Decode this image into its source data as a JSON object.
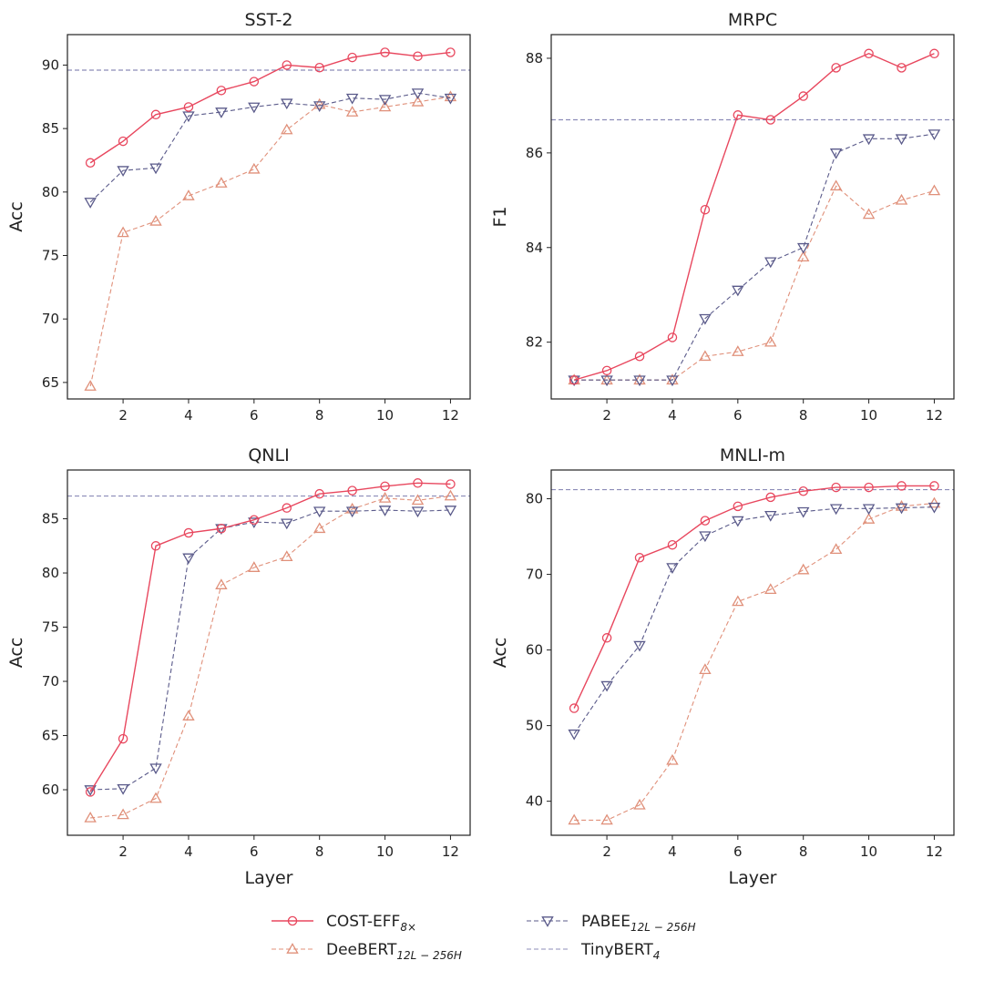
{
  "figure": {
    "xlabel": "Layer",
    "legend": [
      {
        "series": "COST-EFF",
        "label": "COST-EFF",
        "subscript": "8×",
        "color": "#e8475e",
        "marker": "circle",
        "dash": "solid"
      },
      {
        "series": "PABEE",
        "label": "PABEE",
        "subscript": "12L − 256H",
        "color": "#5a5a8a",
        "marker": "triangle-down",
        "dash": "dashed"
      },
      {
        "series": "DeeBERT",
        "label": "DeeBERT",
        "subscript": "12L − 256H",
        "color": "#e0907a",
        "marker": "triangle-up",
        "dash": "dashed"
      },
      {
        "series": "TinyBERT",
        "label": "TinyBERT",
        "subscript": "4",
        "color": "#8c8cb8",
        "marker": "none",
        "dash": "dashed"
      }
    ],
    "legend_placement": "bottom-center"
  },
  "chart_data": [
    {
      "type": "line",
      "title": "SST-2",
      "xlabel": "",
      "ylabel": "Acc",
      "x": [
        1,
        2,
        3,
        4,
        5,
        6,
        7,
        8,
        9,
        10,
        11,
        12
      ],
      "xticks": [
        2,
        4,
        6,
        8,
        10,
        12
      ],
      "xlim": [
        0.3,
        12.6
      ],
      "ylim": [
        63.7,
        92.4
      ],
      "yticks": [
        65,
        70,
        75,
        80,
        85,
        90
      ],
      "grid": false,
      "series": [
        {
          "name": "COST-EFF",
          "values": [
            82.3,
            84.0,
            86.1,
            86.7,
            88.0,
            88.7,
            90.0,
            89.8,
            90.6,
            91.0,
            90.7,
            91.0
          ]
        },
        {
          "name": "PABEE",
          "values": [
            79.2,
            81.7,
            81.9,
            86.0,
            86.3,
            86.7,
            87.0,
            86.8,
            87.4,
            87.3,
            87.8,
            87.4
          ]
        },
        {
          "name": "DeeBERT",
          "values": [
            64.7,
            76.8,
            77.7,
            79.7,
            80.7,
            81.8,
            84.9,
            86.9,
            86.3,
            86.7,
            87.1,
            87.5
          ]
        },
        {
          "name": "TinyBERT",
          "hline": 89.6
        }
      ]
    },
    {
      "type": "line",
      "title": "MRPC",
      "xlabel": "",
      "ylabel": "F1",
      "x": [
        1,
        2,
        3,
        4,
        5,
        6,
        7,
        8,
        9,
        10,
        11,
        12
      ],
      "xticks": [
        2,
        4,
        6,
        8,
        10,
        12
      ],
      "xlim": [
        0.3,
        12.6
      ],
      "ylim": [
        80.8,
        88.5
      ],
      "yticks": [
        82,
        84,
        86,
        88
      ],
      "grid": false,
      "series": [
        {
          "name": "COST-EFF",
          "values": [
            81.2,
            81.4,
            81.7,
            82.1,
            84.8,
            86.8,
            86.7,
            87.2,
            87.8,
            88.1,
            87.8,
            88.1
          ]
        },
        {
          "name": "PABEE",
          "values": [
            81.2,
            81.2,
            81.2,
            81.2,
            82.5,
            83.1,
            83.7,
            84.0,
            86.0,
            86.3,
            86.3,
            86.4
          ]
        },
        {
          "name": "DeeBERT",
          "values": [
            81.2,
            81.2,
            81.2,
            81.2,
            81.7,
            81.8,
            82.0,
            83.8,
            85.3,
            84.7,
            85.0,
            85.2
          ]
        },
        {
          "name": "TinyBERT",
          "hline": 86.7
        }
      ]
    },
    {
      "type": "line",
      "title": "QNLI",
      "xlabel": "Layer",
      "ylabel": "Acc",
      "x": [
        1,
        2,
        3,
        4,
        5,
        6,
        7,
        8,
        9,
        10,
        11,
        12
      ],
      "xticks": [
        2,
        4,
        6,
        8,
        10,
        12
      ],
      "xlim": [
        0.3,
        12.6
      ],
      "ylim": [
        55.8,
        89.5
      ],
      "yticks": [
        60,
        65,
        70,
        75,
        80,
        85
      ],
      "grid": false,
      "series": [
        {
          "name": "COST-EFF",
          "values": [
            59.8,
            64.7,
            82.5,
            83.7,
            84.1,
            84.9,
            86.0,
            87.3,
            87.6,
            88.0,
            88.3,
            88.2
          ]
        },
        {
          "name": "PABEE",
          "values": [
            60.0,
            60.1,
            62.0,
            81.4,
            84.1,
            84.7,
            84.6,
            85.7,
            85.7,
            85.8,
            85.7,
            85.8
          ]
        },
        {
          "name": "DeeBERT",
          "values": [
            57.4,
            57.7,
            59.2,
            66.8,
            78.9,
            80.5,
            81.5,
            84.1,
            85.9,
            86.9,
            86.7,
            87.1
          ]
        },
        {
          "name": "TinyBERT",
          "hline": 87.1
        }
      ]
    },
    {
      "type": "line",
      "title": "MNLI-m",
      "xlabel": "Layer",
      "ylabel": "Acc",
      "x": [
        1,
        2,
        3,
        4,
        5,
        6,
        7,
        8,
        9,
        10,
        11,
        12
      ],
      "xticks": [
        2,
        4,
        6,
        8,
        10,
        12
      ],
      "xlim": [
        0.3,
        12.6
      ],
      "ylim": [
        35.5,
        83.8
      ],
      "yticks": [
        40,
        50,
        60,
        70,
        80
      ],
      "grid": false,
      "series": [
        {
          "name": "COST-EFF",
          "values": [
            52.3,
            61.6,
            72.2,
            73.9,
            77.1,
            79.0,
            80.2,
            81.0,
            81.5,
            81.5,
            81.7,
            81.7
          ]
        },
        {
          "name": "PABEE",
          "values": [
            48.9,
            55.3,
            60.6,
            70.9,
            75.1,
            77.1,
            77.8,
            78.3,
            78.7,
            78.7,
            78.8,
            78.9
          ]
        },
        {
          "name": "DeeBERT",
          "values": [
            37.5,
            37.5,
            39.5,
            45.4,
            57.4,
            66.4,
            68.0,
            70.6,
            73.3,
            77.3,
            79.0,
            79.4
          ]
        },
        {
          "name": "TinyBERT",
          "hline": 81.2
        }
      ]
    }
  ]
}
